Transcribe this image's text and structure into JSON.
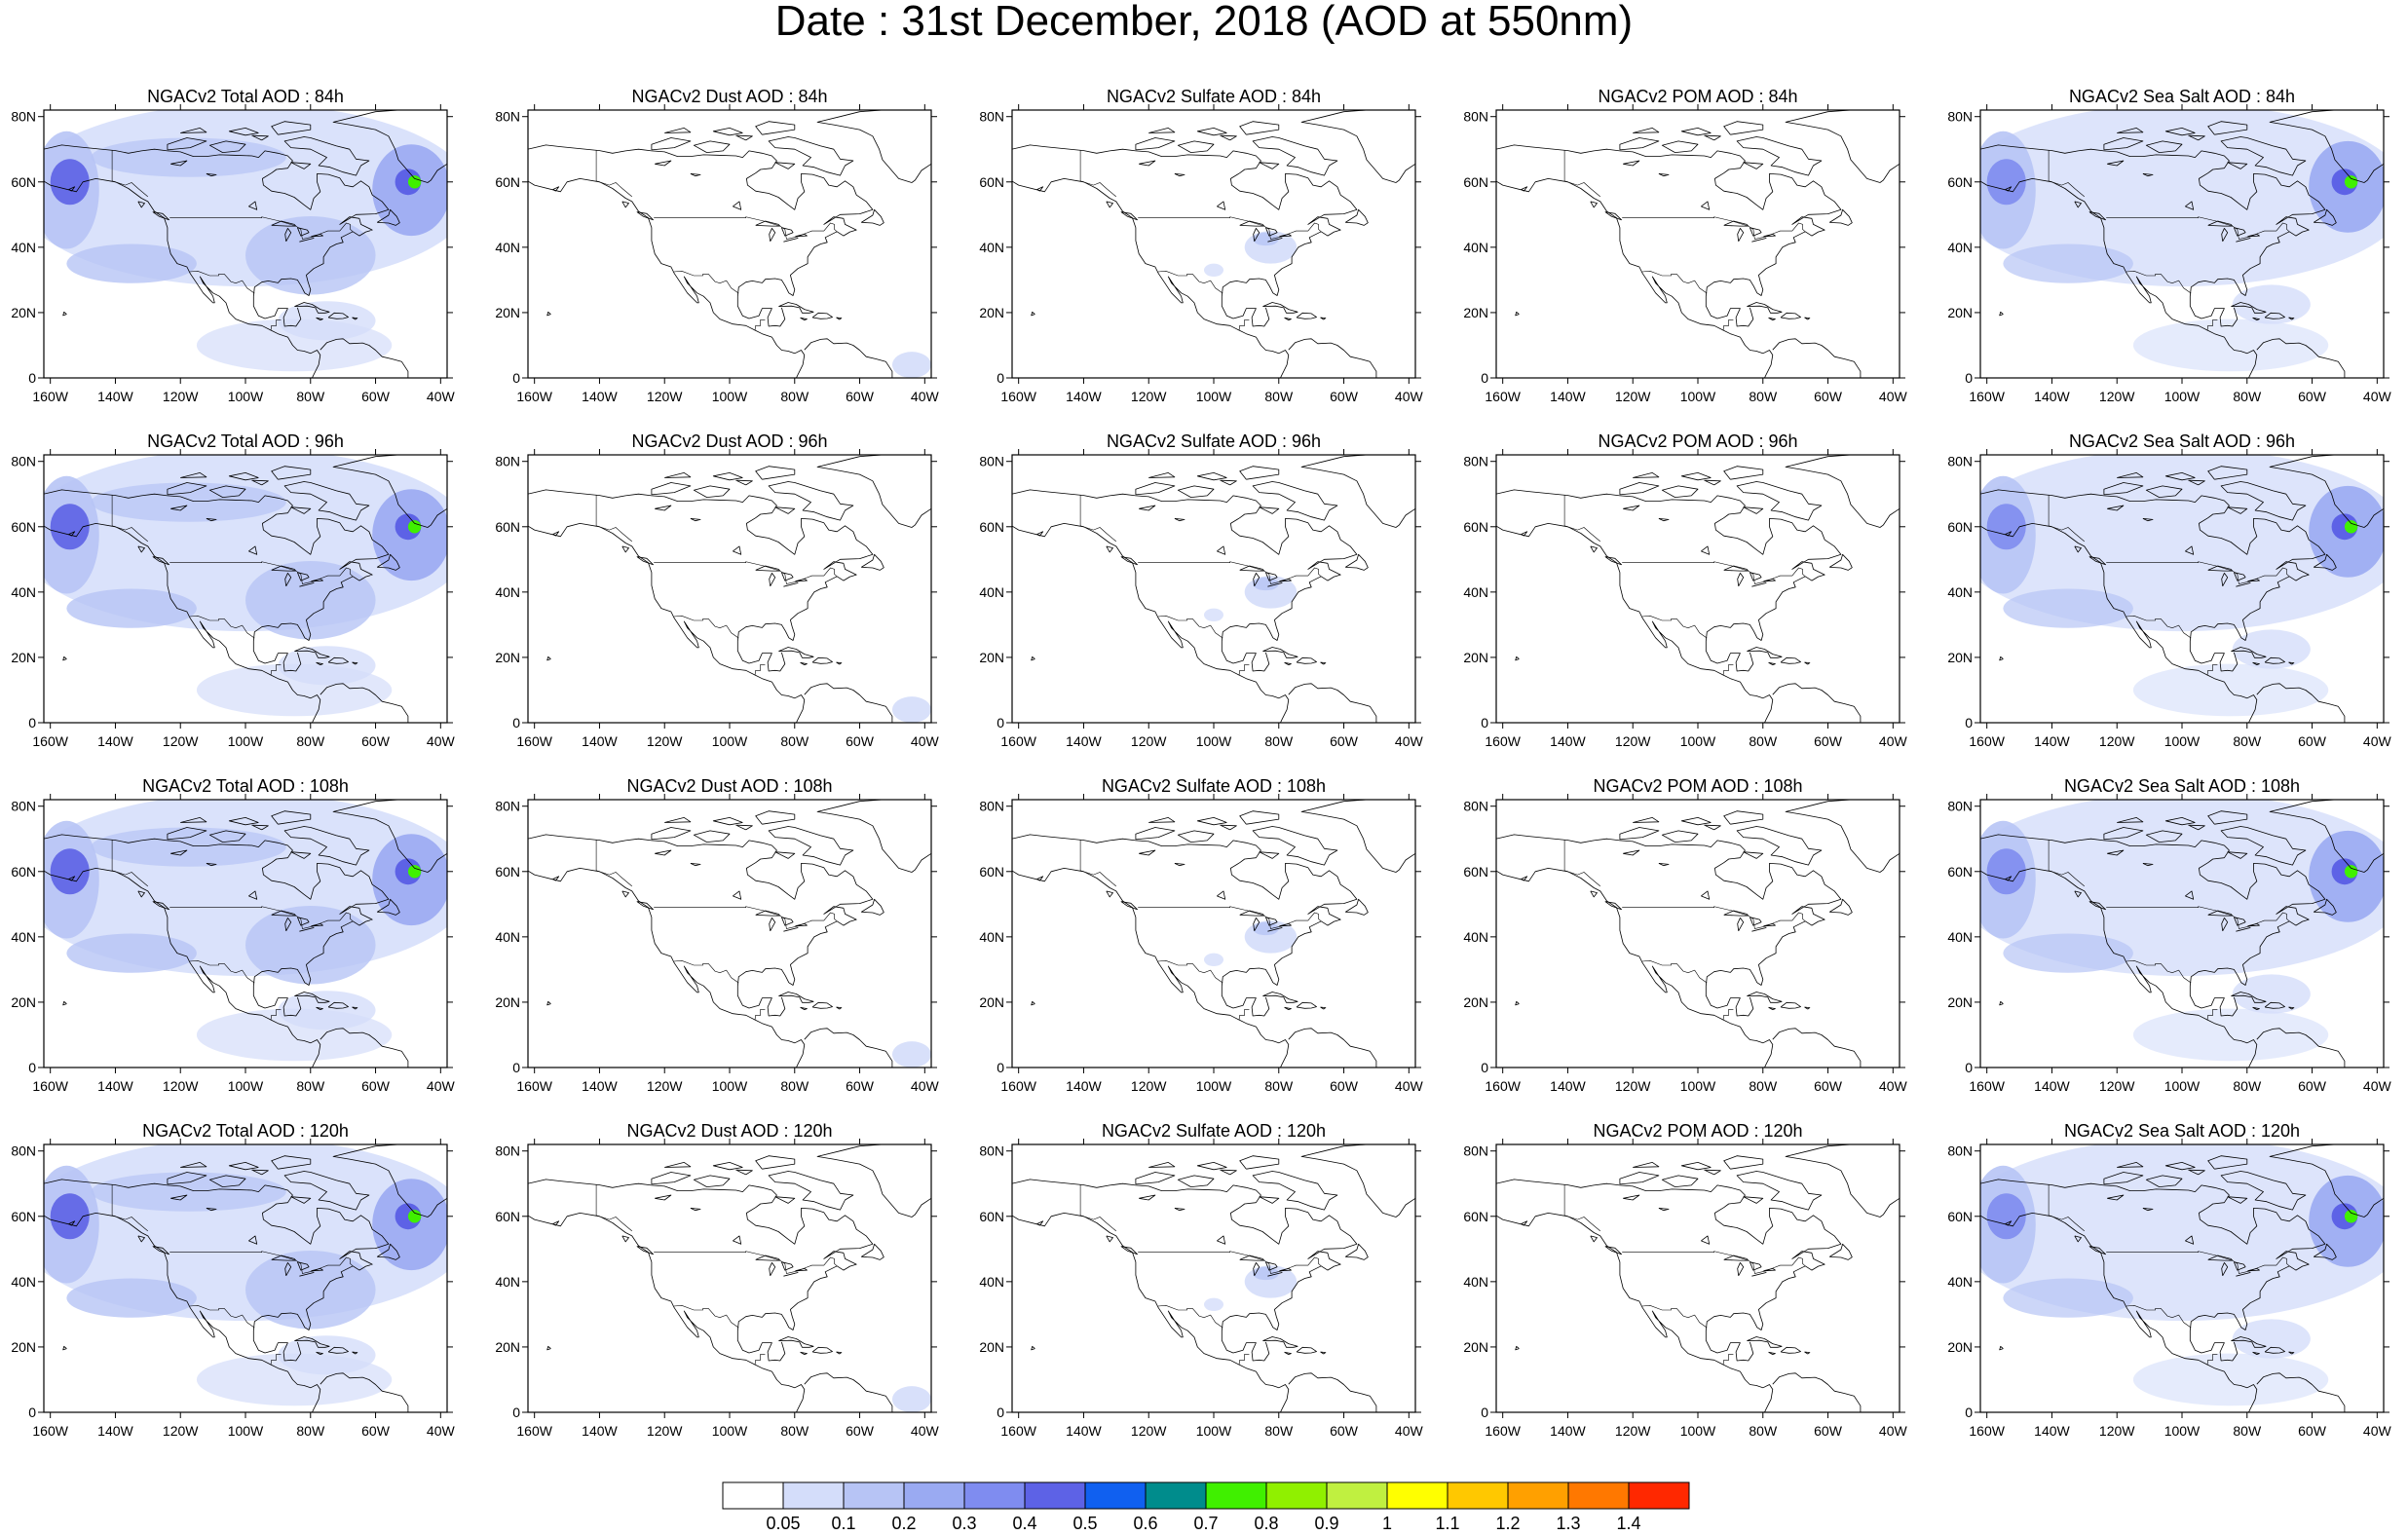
{
  "title": "Date : 31st December, 2018 (AOD at 550nm)",
  "lat_ticks": [
    "0",
    "20N",
    "40N",
    "60N",
    "80N"
  ],
  "lon_ticks": [
    "160W",
    "140W",
    "120W",
    "100W",
    "80W",
    "60W",
    "40W"
  ],
  "extent": {
    "lon_min": -162,
    "lon_max": -38,
    "lat_min": 0,
    "lat_max": 82
  },
  "rows": [
    {
      "hour": "84h",
      "titles": [
        "NGACv2 Total AOD : 84h",
        "NGACv2 Dust AOD : 84h",
        "NGACv2 Sulfate AOD : 84h",
        "NGACv2 POM AOD : 84h",
        "NGACv2 Sea Salt AOD : 84h"
      ]
    },
    {
      "hour": "96h",
      "titles": [
        "NGACv2 Total AOD : 96h",
        "NGACv2 Dust AOD : 96h",
        "NGACv2 Sulfate AOD : 96h",
        "NGACv2 POM AOD : 96h",
        "NGACv2 Sea Salt AOD : 96h"
      ]
    },
    {
      "hour": "108h",
      "titles": [
        "NGACv2 Total AOD : 108h",
        "NGACv2 Dust AOD : 108h",
        "NGACv2 Sulfate AOD : 108h",
        "NGACv2 POM AOD : 108h",
        "NGACv2 Sea Salt AOD : 108h"
      ]
    },
    {
      "hour": "120h",
      "titles": [
        "NGACv2 Total AOD : 120h",
        "NGACv2 Dust AOD : 120h",
        "NGACv2 Sulfate AOD : 120h",
        "NGACv2 POM AOD : 120h",
        "NGACv2 Sea Salt  AOD : 120h"
      ]
    }
  ],
  "fields": [
    {
      "id": "total",
      "level": "broad"
    },
    {
      "id": "dust",
      "level": "trace"
    },
    {
      "id": "sulfate",
      "level": "low"
    },
    {
      "id": "pom",
      "level": "none"
    },
    {
      "id": "seasalt",
      "level": "broad"
    }
  ],
  "colorbar": {
    "labels": [
      "0.05",
      "0.1",
      "0.2",
      "0.3",
      "0.4",
      "0.5",
      "0.6",
      "0.7",
      "0.8",
      "0.9",
      "1",
      "1.1",
      "1.2",
      "1.3",
      "1.4"
    ],
    "colors": [
      "#ffffff",
      "#d4ddfa",
      "#b7c4f5",
      "#9aaaf2",
      "#7f8cf0",
      "#5d62e6",
      "#1060f0",
      "#008c8c",
      "#40f000",
      "#90f000",
      "#c0f040",
      "#ffff00",
      "#ffc800",
      "#ffa000",
      "#ff7800",
      "#ff2800"
    ]
  }
}
